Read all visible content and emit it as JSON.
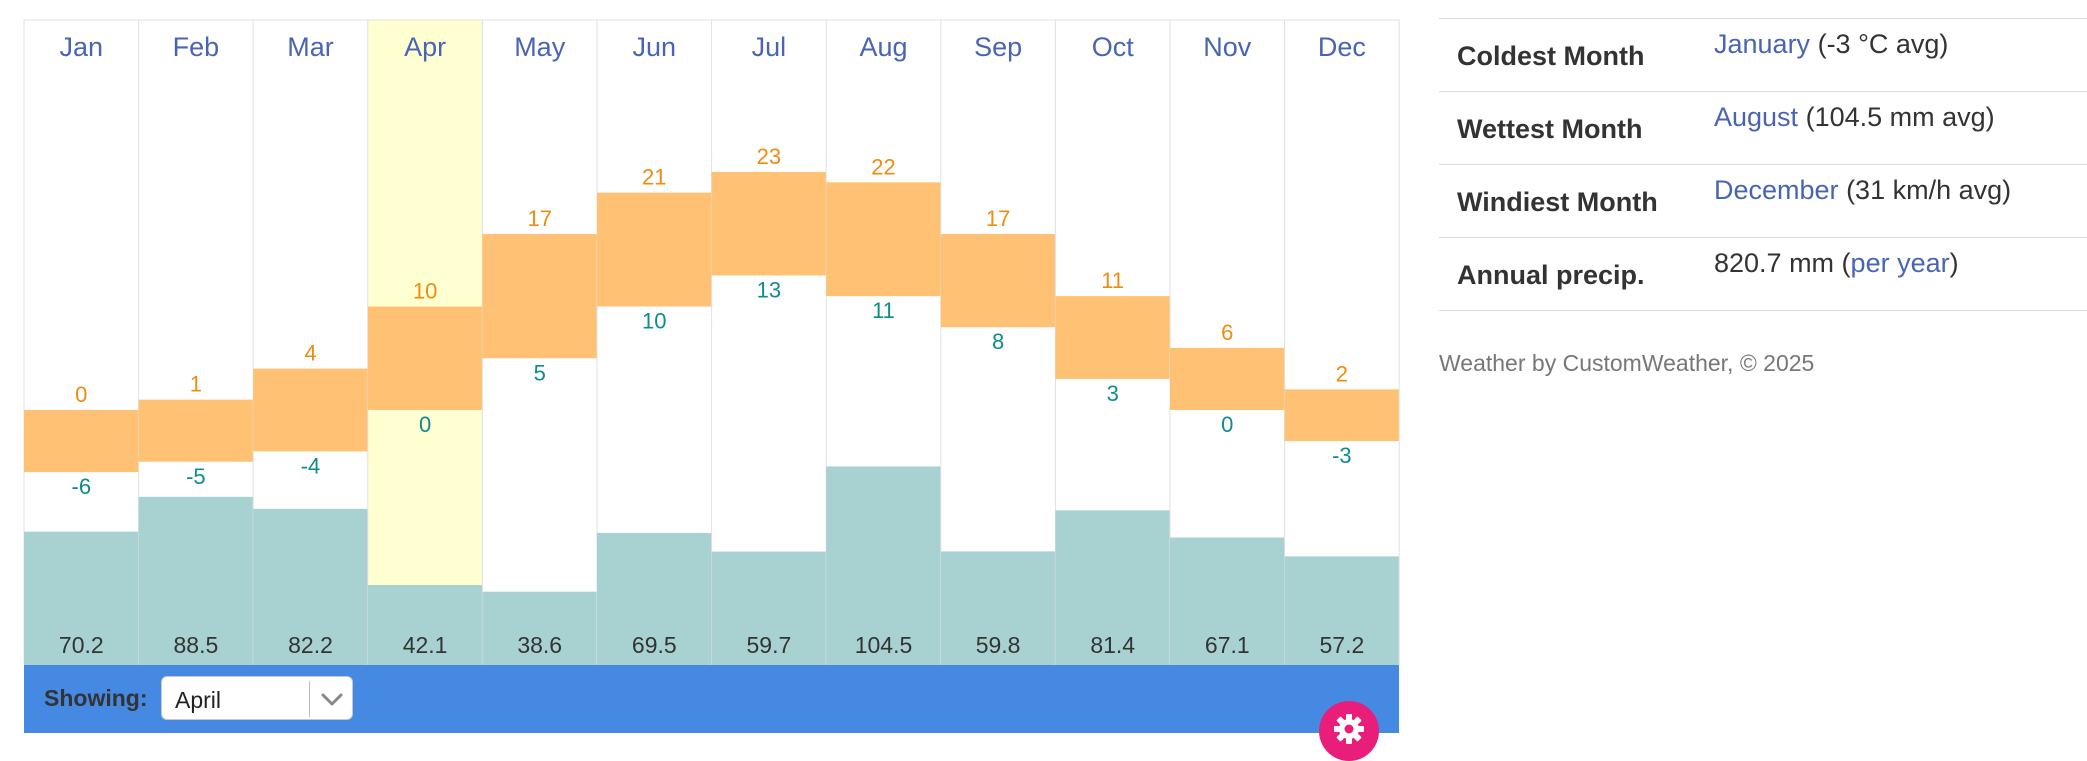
{
  "chart_data": {
    "type": "bar",
    "categories": [
      "Jan",
      "Feb",
      "Mar",
      "Apr",
      "May",
      "Jun",
      "Jul",
      "Aug",
      "Sep",
      "Oct",
      "Nov",
      "Dec"
    ],
    "series": [
      {
        "values": [
          0,
          1,
          4,
          10,
          17,
          21,
          23,
          22,
          17,
          11,
          6,
          2
        ]
      },
      {
        "values": [
          -6,
          -5,
          -4,
          0,
          5,
          10,
          13,
          11,
          8,
          3,
          0,
          -3
        ]
      },
      {
        "values": [
          70.2,
          88.5,
          82.2,
          42.1,
          38.6,
          69.5,
          59.7,
          104.5,
          59.8,
          81.4,
          67.1,
          57.2
        ]
      }
    ],
    "highlighted_category": "Apr",
    "colors": {
      "temp_bar": "#ffc173",
      "high_label": "#ee8c10",
      "low_label": "#0e8c8c",
      "precip_bar": "#a8d2d2",
      "precip_label": "#333333",
      "month_label": "#4a64b4",
      "highlight": "#ffffd2",
      "grid": "#e0e0e0"
    }
  },
  "controls": {
    "showing_label": "Showing:",
    "selected_month": "April"
  },
  "stats": [
    {
      "name": "Coldest Month",
      "link": "January",
      "detail": "(-3 °C avg)"
    },
    {
      "name": "Wettest Month",
      "link": "August",
      "detail": "(104.5 mm avg)"
    },
    {
      "name": "Windiest Month",
      "link": "December",
      "detail": "(31 km/h avg)"
    },
    {
      "name": "Annual precip.",
      "value_prefix": "820.7 mm (",
      "link": "per year",
      "value_suffix": ")"
    }
  ],
  "footer": "Weather by CustomWeather, © 2025",
  "icons": {
    "dropdown": "chevron-down-icon",
    "settings": "gear-icon"
  }
}
